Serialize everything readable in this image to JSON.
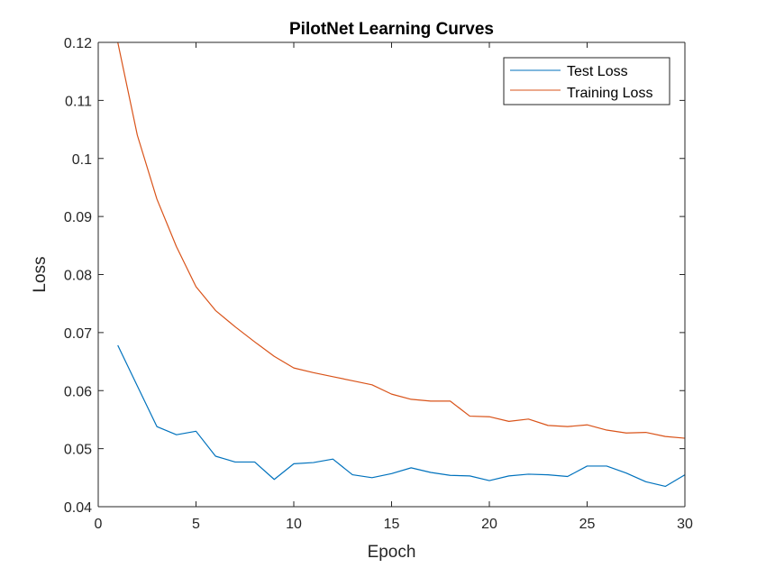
{
  "chart_data": {
    "type": "line",
    "title": "PilotNet Learning Curves",
    "xlabel": "Epoch",
    "ylabel": "Loss",
    "xlim": [
      0,
      30
    ],
    "ylim": [
      0.04,
      0.12
    ],
    "x_ticks": [
      0,
      5,
      10,
      15,
      20,
      25,
      30
    ],
    "x_tick_labels": [
      "0",
      "5",
      "10",
      "15",
      "20",
      "25",
      "30"
    ],
    "y_ticks": [
      0.04,
      0.05,
      0.06,
      0.07,
      0.08,
      0.09,
      0.1,
      0.11,
      0.12
    ],
    "y_tick_labels": [
      "0.04",
      "0.05",
      "0.06",
      "0.07",
      "0.08",
      "0.09",
      "0.1",
      "0.11",
      "0.12"
    ],
    "grid": false,
    "legend_position": "top-right",
    "x": [
      1,
      2,
      3,
      4,
      5,
      6,
      7,
      8,
      9,
      10,
      11,
      12,
      13,
      14,
      15,
      16,
      17,
      18,
      19,
      20,
      21,
      22,
      23,
      24,
      25,
      26,
      27,
      28,
      29,
      30
    ],
    "series": [
      {
        "name": "Test Loss",
        "color": "#0072BD",
        "values": [
          0.0678,
          0.0608,
          0.0538,
          0.0524,
          0.053,
          0.0487,
          0.0477,
          0.0477,
          0.0447,
          0.0474,
          0.0476,
          0.0482,
          0.0455,
          0.045,
          0.0457,
          0.0467,
          0.0459,
          0.0454,
          0.0453,
          0.0445,
          0.0453,
          0.0456,
          0.0455,
          0.0452,
          0.047,
          0.047,
          0.0458,
          0.0443,
          0.0435,
          0.0455
        ]
      },
      {
        "name": "Training Loss",
        "color": "#D95319",
        "values": [
          0.12,
          0.104,
          0.093,
          0.0848,
          0.0779,
          0.0738,
          0.071,
          0.0684,
          0.0659,
          0.0639,
          0.0631,
          0.0624,
          0.0617,
          0.061,
          0.0594,
          0.0585,
          0.0582,
          0.0582,
          0.0556,
          0.0555,
          0.0547,
          0.0551,
          0.054,
          0.0538,
          0.0541,
          0.0532,
          0.0527,
          0.0528,
          0.0521,
          0.0518
        ]
      }
    ]
  }
}
